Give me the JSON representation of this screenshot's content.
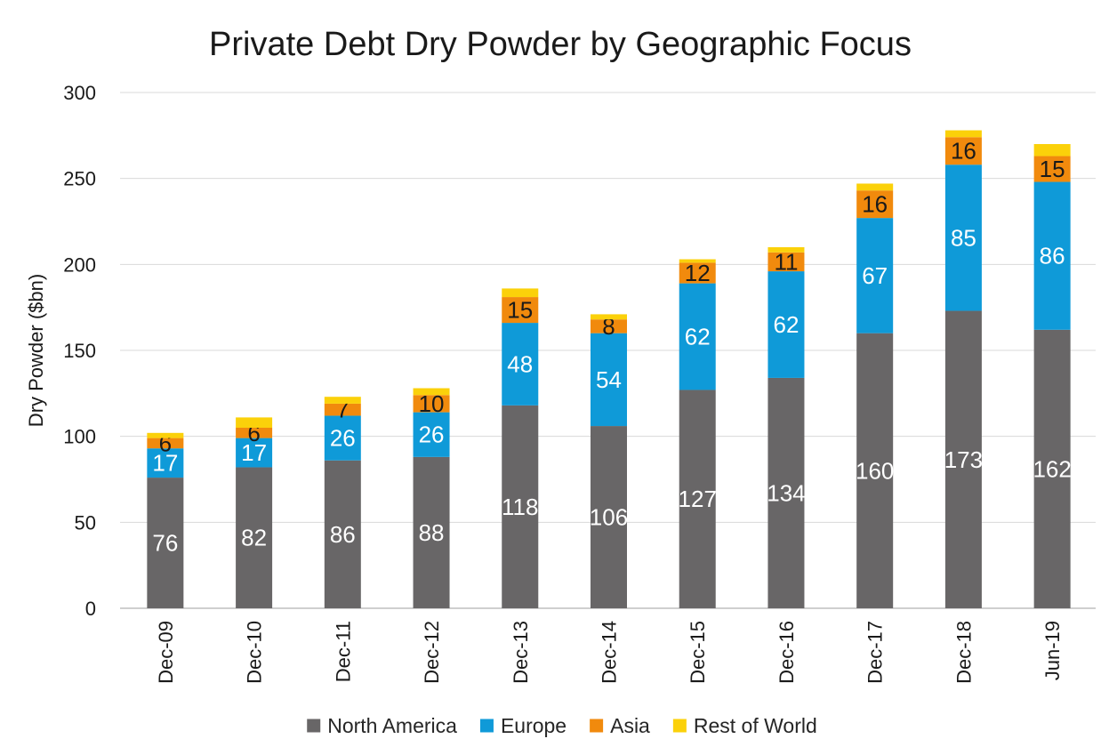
{
  "chart_data": {
    "type": "bar",
    "stacked": true,
    "title": "Private Debt Dry Powder by Geographic Focus",
    "xlabel": "",
    "ylabel": "Dry Powder ($bn)",
    "ylim": [
      0,
      300
    ],
    "yticks": [
      0,
      50,
      100,
      150,
      200,
      250,
      300
    ],
    "grid": true,
    "legend_position": "bottom",
    "categories": [
      "Dec-09",
      "Dec-10",
      "Dec-11",
      "Dec-12",
      "Dec-13",
      "Dec-14",
      "Dec-15",
      "Dec-16",
      "Dec-17",
      "Dec-18",
      "Jun-19"
    ],
    "series": [
      {
        "name": "North America",
        "color": "#686667",
        "label_color": "#ffffff",
        "values": [
          76,
          82,
          86,
          88,
          118,
          106,
          127,
          134,
          160,
          173,
          162
        ],
        "show_labels": true
      },
      {
        "name": "Europe",
        "color": "#0f9ad8",
        "label_color": "#ffffff",
        "values": [
          17,
          17,
          26,
          26,
          48,
          54,
          62,
          62,
          67,
          85,
          86
        ],
        "show_labels": true
      },
      {
        "name": "Asia",
        "color": "#f18a0d",
        "label_color": "#1a1a1a",
        "values": [
          6,
          6,
          7,
          10,
          15,
          8,
          12,
          11,
          16,
          16,
          15
        ],
        "show_labels": true
      },
      {
        "name": "Rest of World",
        "color": "#fbd10a",
        "label_color": "#1a1a1a",
        "values": [
          3,
          6,
          4,
          4,
          5,
          3,
          2,
          3,
          4,
          4,
          7
        ],
        "show_labels": false
      }
    ]
  }
}
